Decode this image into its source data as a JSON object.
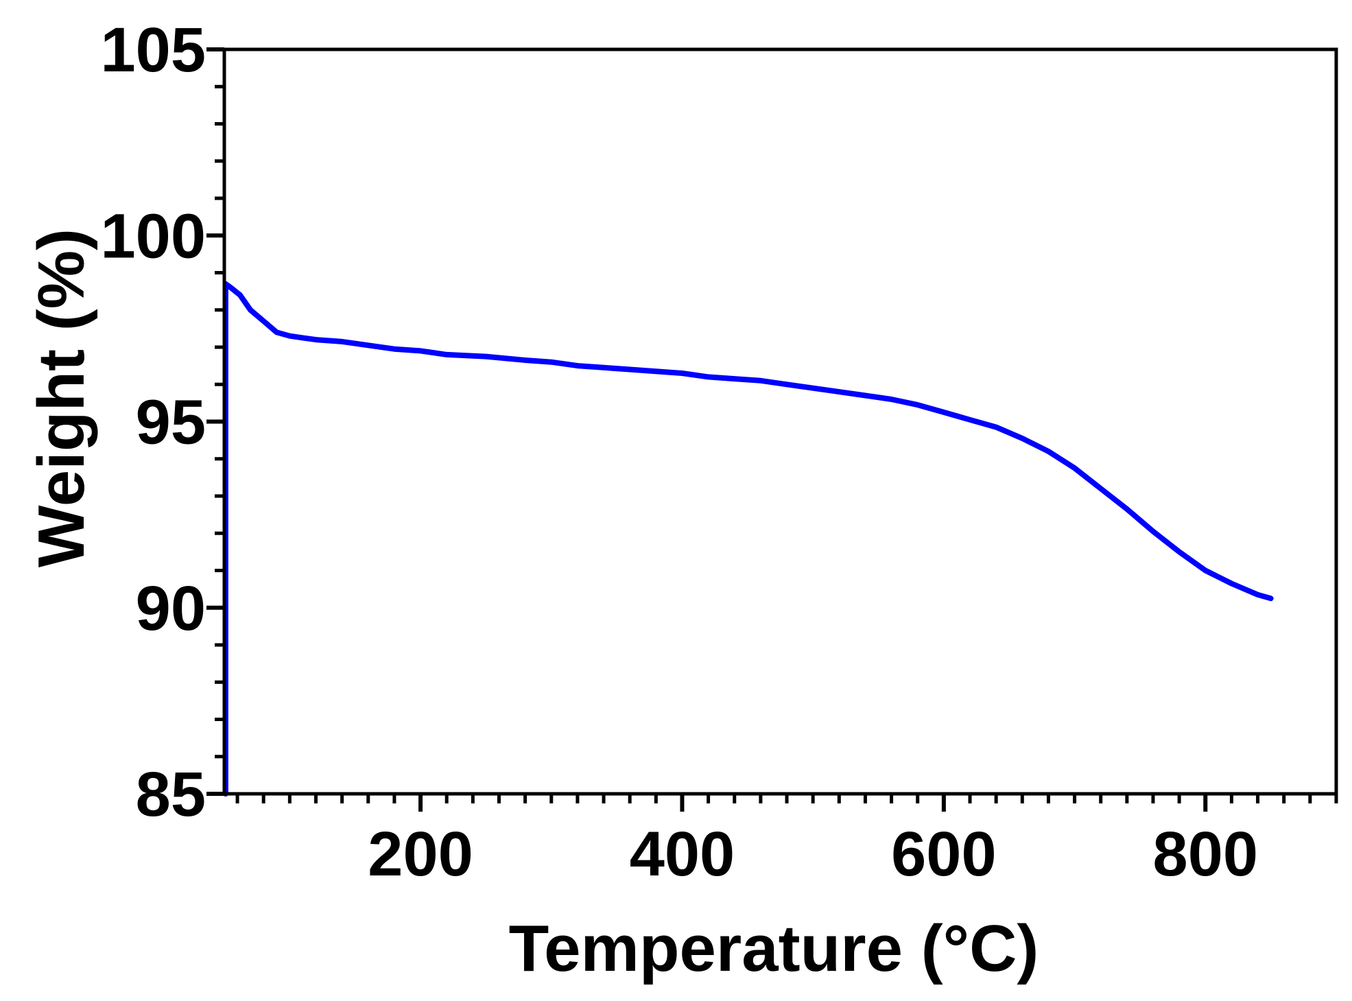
{
  "chart_data": {
    "type": "line",
    "xlabel": "Temperature (°C)",
    "ylabel": "Weight (%)",
    "xlim": [
      50,
      900
    ],
    "ylim": [
      85,
      105
    ],
    "x_ticks": [
      200,
      400,
      600,
      800
    ],
    "x_tick_labels": [
      "200",
      "400",
      "600",
      "800"
    ],
    "y_ticks": [
      85,
      90,
      95,
      100,
      105
    ],
    "y_tick_labels": [
      "85",
      "90",
      "95",
      "100",
      "105"
    ],
    "x_minor_step": 20,
    "y_minor_step": 1,
    "grid": false,
    "legend": "none",
    "frame": "box",
    "colors": {
      "line": "#0000ff",
      "axis": "#000000",
      "background": "#ffffff"
    },
    "series": [
      {
        "x": [
          51,
          51,
          55,
          62,
          70,
          80,
          90,
          100,
          110,
          120,
          140,
          160,
          180,
          200,
          220,
          250,
          280,
          300,
          320,
          340,
          360,
          380,
          400,
          420,
          440,
          460,
          480,
          500,
          520,
          540,
          560,
          580,
          600,
          620,
          640,
          660,
          680,
          700,
          720,
          740,
          760,
          780,
          800,
          820,
          840,
          850
        ],
        "y": [
          85.0,
          98.7,
          98.6,
          98.4,
          98.0,
          97.7,
          97.4,
          97.3,
          97.25,
          97.2,
          97.15,
          97.05,
          96.95,
          96.9,
          96.8,
          96.75,
          96.65,
          96.6,
          96.5,
          96.45,
          96.4,
          96.35,
          96.3,
          96.2,
          96.15,
          96.1,
          96.0,
          95.9,
          95.8,
          95.7,
          95.6,
          95.45,
          95.25,
          95.05,
          94.85,
          94.55,
          94.2,
          93.75,
          93.2,
          92.65,
          92.05,
          91.5,
          91.0,
          90.65,
          90.35,
          90.25
        ]
      }
    ]
  }
}
